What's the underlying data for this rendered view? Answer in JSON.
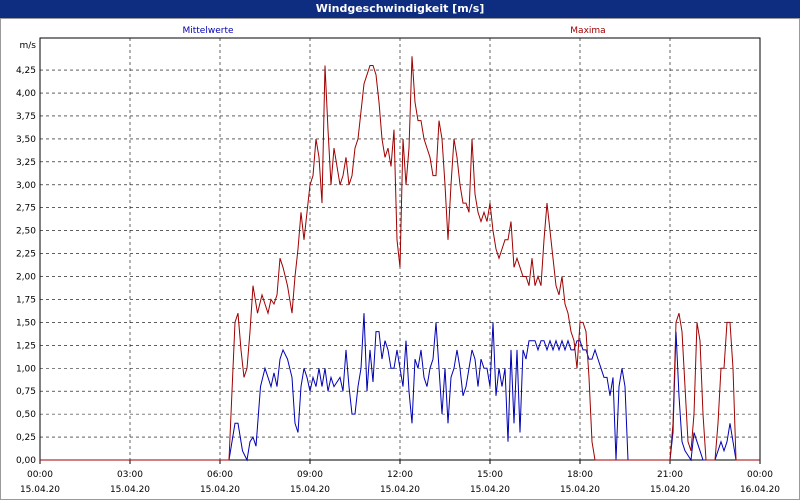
{
  "window": {
    "title": "Windgeschwindigkeit [m/s]"
  },
  "colors": {
    "titlebar": "#0f2d80",
    "mean": "#0000b4",
    "max": "#a00000",
    "grid": "#000000"
  },
  "chart_data": {
    "type": "line",
    "title": "Windgeschwindigkeit [m/s]",
    "ylabel": "m/s",
    "ylim": [
      0,
      4.6
    ],
    "xlim": [
      0,
      24
    ],
    "y_ticks": [
      "0,00",
      "0,25",
      "0,50",
      "0,75",
      "1,00",
      "1,25",
      "1,50",
      "1,75",
      "2,00",
      "2,25",
      "2,50",
      "2,75",
      "3,00",
      "3,25",
      "3,50",
      "3,75",
      "4,00",
      "4,25"
    ],
    "x_ticks": [
      {
        "time": "00:00",
        "date": "15.04.20"
      },
      {
        "time": "03:00",
        "date": "15.04.20"
      },
      {
        "time": "06:00",
        "date": "15.04.20"
      },
      {
        "time": "09:00",
        "date": "15.04.20"
      },
      {
        "time": "12:00",
        "date": "15.04.20"
      },
      {
        "time": "15:00",
        "date": "15.04.20"
      },
      {
        "time": "18:00",
        "date": "15.04.20"
      },
      {
        "time": "21:00",
        "date": "15.04.20"
      },
      {
        "time": "00:00",
        "date": "16.04.20"
      }
    ],
    "grid": true,
    "legend_position": "top",
    "series": [
      {
        "name": "Mittelwerte",
        "color": "#0000b4",
        "points": [
          [
            0,
            0
          ],
          [
            6.3,
            0
          ],
          [
            6.5,
            0.4
          ],
          [
            6.6,
            0.4
          ],
          [
            6.75,
            0.1
          ],
          [
            6.9,
            0
          ],
          [
            7.0,
            0.2
          ],
          [
            7.1,
            0.25
          ],
          [
            7.2,
            0.15
          ],
          [
            7.35,
            0.8
          ],
          [
            7.5,
            1.0
          ],
          [
            7.6,
            0.9
          ],
          [
            7.7,
            0.8
          ],
          [
            7.8,
            0.95
          ],
          [
            7.9,
            0.8
          ],
          [
            8.0,
            1.1
          ],
          [
            8.1,
            1.2
          ],
          [
            8.25,
            1.1
          ],
          [
            8.4,
            0.9
          ],
          [
            8.5,
            0.4
          ],
          [
            8.6,
            0.3
          ],
          [
            8.7,
            0.8
          ],
          [
            8.8,
            1.0
          ],
          [
            8.9,
            0.9
          ],
          [
            9.0,
            0.75
          ],
          [
            9.1,
            0.9
          ],
          [
            9.2,
            0.8
          ],
          [
            9.3,
            1.0
          ],
          [
            9.4,
            0.8
          ],
          [
            9.5,
            1.0
          ],
          [
            9.6,
            0.75
          ],
          [
            9.7,
            0.9
          ],
          [
            9.8,
            0.8
          ],
          [
            9.9,
            0.85
          ],
          [
            10.0,
            0.9
          ],
          [
            10.1,
            0.75
          ],
          [
            10.2,
            1.2
          ],
          [
            10.3,
            0.8
          ],
          [
            10.4,
            0.5
          ],
          [
            10.5,
            0.5
          ],
          [
            10.6,
            0.8
          ],
          [
            10.7,
            1.0
          ],
          [
            10.8,
            1.6
          ],
          [
            10.9,
            0.75
          ],
          [
            11.0,
            1.2
          ],
          [
            11.1,
            0.85
          ],
          [
            11.2,
            1.4
          ],
          [
            11.3,
            1.4
          ],
          [
            11.4,
            1.1
          ],
          [
            11.5,
            1.3
          ],
          [
            11.6,
            1.2
          ],
          [
            11.7,
            1.0
          ],
          [
            11.8,
            1.0
          ],
          [
            11.9,
            1.2
          ],
          [
            12.0,
            1.0
          ],
          [
            12.1,
            0.8
          ],
          [
            12.2,
            1.3
          ],
          [
            12.3,
            0.75
          ],
          [
            12.4,
            0.4
          ],
          [
            12.5,
            1.1
          ],
          [
            12.6,
            1.0
          ],
          [
            12.7,
            1.2
          ],
          [
            12.8,
            0.9
          ],
          [
            12.9,
            0.8
          ],
          [
            13.0,
            1.0
          ],
          [
            13.1,
            1.1
          ],
          [
            13.2,
            1.5
          ],
          [
            13.3,
            1.0
          ],
          [
            13.4,
            0.5
          ],
          [
            13.5,
            1.0
          ],
          [
            13.6,
            0.4
          ],
          [
            13.7,
            0.9
          ],
          [
            13.8,
            1.0
          ],
          [
            13.9,
            1.2
          ],
          [
            14.0,
            1.0
          ],
          [
            14.1,
            0.7
          ],
          [
            14.2,
            0.8
          ],
          [
            14.3,
            1.0
          ],
          [
            14.4,
            1.2
          ],
          [
            14.5,
            1.1
          ],
          [
            14.6,
            0.8
          ],
          [
            14.7,
            1.1
          ],
          [
            14.8,
            1.0
          ],
          [
            14.9,
            1.0
          ],
          [
            15.0,
            0.8
          ],
          [
            15.1,
            1.5
          ],
          [
            15.2,
            0.7
          ],
          [
            15.3,
            1.0
          ],
          [
            15.4,
            0.8
          ],
          [
            15.5,
            1.0
          ],
          [
            15.6,
            0.2
          ],
          [
            15.7,
            1.2
          ],
          [
            15.8,
            0.4
          ],
          [
            15.9,
            1.2
          ],
          [
            16.0,
            0.3
          ],
          [
            16.1,
            1.2
          ],
          [
            16.2,
            1.1
          ],
          [
            16.3,
            1.3
          ],
          [
            16.4,
            1.3
          ],
          [
            16.5,
            1.3
          ],
          [
            16.6,
            1.2
          ],
          [
            16.7,
            1.3
          ],
          [
            16.8,
            1.3
          ],
          [
            16.9,
            1.2
          ],
          [
            17.0,
            1.3
          ],
          [
            17.1,
            1.2
          ],
          [
            17.2,
            1.3
          ],
          [
            17.3,
            1.2
          ],
          [
            17.4,
            1.3
          ],
          [
            17.5,
            1.2
          ],
          [
            17.6,
            1.3
          ],
          [
            17.7,
            1.2
          ],
          [
            17.8,
            1.2
          ],
          [
            17.9,
            1.3
          ],
          [
            18.0,
            1.3
          ],
          [
            18.1,
            1.2
          ],
          [
            18.2,
            1.2
          ],
          [
            18.3,
            1.1
          ],
          [
            18.4,
            1.1
          ],
          [
            18.5,
            1.2
          ],
          [
            18.6,
            1.1
          ],
          [
            18.7,
            1.0
          ],
          [
            18.8,
            0.9
          ],
          [
            18.9,
            0.9
          ],
          [
            19.0,
            0.7
          ],
          [
            19.1,
            0.9
          ],
          [
            19.2,
            0.0
          ],
          [
            19.3,
            0.8
          ],
          [
            19.4,
            1.0
          ],
          [
            19.5,
            0.8
          ],
          [
            19.6,
            0
          ],
          [
            21.0,
            0
          ],
          [
            21.1,
            0.3
          ],
          [
            21.2,
            1.4
          ],
          [
            21.3,
            0.7
          ],
          [
            21.4,
            0.2
          ],
          [
            21.5,
            0.1
          ],
          [
            21.6,
            0.05
          ],
          [
            21.7,
            0
          ],
          [
            21.8,
            0.3
          ],
          [
            21.9,
            0.2
          ],
          [
            22.0,
            0.1
          ],
          [
            22.1,
            0.0
          ],
          [
            22.2,
            0
          ],
          [
            22.5,
            0
          ],
          [
            22.6,
            0.1
          ],
          [
            22.7,
            0.2
          ],
          [
            22.8,
            0.1
          ],
          [
            22.9,
            0.2
          ],
          [
            23.0,
            0.4
          ],
          [
            23.1,
            0.2
          ],
          [
            23.2,
            0
          ],
          [
            24,
            0
          ]
        ]
      },
      {
        "name": "Maxima",
        "color": "#a00000",
        "points": [
          [
            0,
            0
          ],
          [
            6.3,
            0
          ],
          [
            6.5,
            1.5
          ],
          [
            6.6,
            1.6
          ],
          [
            6.7,
            1.2
          ],
          [
            6.8,
            0.9
          ],
          [
            6.9,
            1.0
          ],
          [
            7.0,
            1.4
          ],
          [
            7.1,
            1.9
          ],
          [
            7.25,
            1.6
          ],
          [
            7.4,
            1.8
          ],
          [
            7.5,
            1.7
          ],
          [
            7.6,
            1.6
          ],
          [
            7.7,
            1.75
          ],
          [
            7.8,
            1.7
          ],
          [
            7.9,
            1.8
          ],
          [
            8.0,
            2.2
          ],
          [
            8.1,
            2.1
          ],
          [
            8.25,
            1.9
          ],
          [
            8.4,
            1.6
          ],
          [
            8.5,
            2.0
          ],
          [
            8.6,
            2.3
          ],
          [
            8.7,
            2.7
          ],
          [
            8.8,
            2.4
          ],
          [
            8.9,
            2.7
          ],
          [
            9.0,
            3.0
          ],
          [
            9.1,
            3.1
          ],
          [
            9.2,
            3.5
          ],
          [
            9.3,
            3.3
          ],
          [
            9.4,
            2.8
          ],
          [
            9.5,
            4.3
          ],
          [
            9.6,
            3.6
          ],
          [
            9.7,
            3.0
          ],
          [
            9.8,
            3.4
          ],
          [
            9.9,
            3.2
          ],
          [
            10.0,
            3.0
          ],
          [
            10.1,
            3.1
          ],
          [
            10.2,
            3.3
          ],
          [
            10.3,
            3.0
          ],
          [
            10.4,
            3.1
          ],
          [
            10.5,
            3.4
          ],
          [
            10.6,
            3.5
          ],
          [
            10.7,
            3.8
          ],
          [
            10.8,
            4.1
          ],
          [
            10.9,
            4.2
          ],
          [
            11.0,
            4.3
          ],
          [
            11.1,
            4.3
          ],
          [
            11.2,
            4.2
          ],
          [
            11.3,
            3.9
          ],
          [
            11.4,
            3.5
          ],
          [
            11.5,
            3.3
          ],
          [
            11.6,
            3.4
          ],
          [
            11.7,
            3.2
          ],
          [
            11.8,
            3.6
          ],
          [
            11.9,
            2.4
          ],
          [
            12.0,
            2.1
          ],
          [
            12.1,
            3.5
          ],
          [
            12.2,
            3.0
          ],
          [
            12.3,
            3.4
          ],
          [
            12.4,
            4.4
          ],
          [
            12.5,
            3.9
          ],
          [
            12.6,
            3.7
          ],
          [
            12.7,
            3.7
          ],
          [
            12.8,
            3.5
          ],
          [
            12.9,
            3.4
          ],
          [
            13.0,
            3.3
          ],
          [
            13.1,
            3.1
          ],
          [
            13.2,
            3.1
          ],
          [
            13.3,
            3.7
          ],
          [
            13.4,
            3.5
          ],
          [
            13.5,
            3.0
          ],
          [
            13.6,
            2.4
          ],
          [
            13.7,
            3.0
          ],
          [
            13.8,
            3.5
          ],
          [
            13.9,
            3.3
          ],
          [
            14.0,
            3.0
          ],
          [
            14.1,
            2.8
          ],
          [
            14.2,
            2.8
          ],
          [
            14.3,
            2.7
          ],
          [
            14.4,
            3.5
          ],
          [
            14.5,
            2.9
          ],
          [
            14.6,
            2.7
          ],
          [
            14.7,
            2.6
          ],
          [
            14.8,
            2.7
          ],
          [
            14.9,
            2.6
          ],
          [
            15.0,
            2.8
          ],
          [
            15.1,
            2.5
          ],
          [
            15.2,
            2.3
          ],
          [
            15.3,
            2.2
          ],
          [
            15.4,
            2.3
          ],
          [
            15.5,
            2.4
          ],
          [
            15.6,
            2.4
          ],
          [
            15.7,
            2.6
          ],
          [
            15.8,
            2.1
          ],
          [
            15.9,
            2.2
          ],
          [
            16.0,
            2.1
          ],
          [
            16.1,
            2.0
          ],
          [
            16.2,
            2.0
          ],
          [
            16.3,
            1.9
          ],
          [
            16.4,
            2.2
          ],
          [
            16.5,
            1.9
          ],
          [
            16.6,
            2.0
          ],
          [
            16.7,
            1.9
          ],
          [
            16.8,
            2.4
          ],
          [
            16.9,
            2.8
          ],
          [
            17.0,
            2.5
          ],
          [
            17.1,
            2.2
          ],
          [
            17.2,
            1.9
          ],
          [
            17.3,
            1.8
          ],
          [
            17.4,
            2.0
          ],
          [
            17.5,
            1.7
          ],
          [
            17.6,
            1.6
          ],
          [
            17.7,
            1.4
          ],
          [
            17.8,
            1.3
          ],
          [
            17.9,
            1.0
          ],
          [
            18.0,
            1.5
          ],
          [
            18.1,
            1.5
          ],
          [
            18.2,
            1.4
          ],
          [
            18.3,
            0.9
          ],
          [
            18.4,
            0.2
          ],
          [
            18.5,
            0
          ],
          [
            19.6,
            0
          ],
          [
            21.0,
            0
          ],
          [
            21.1,
            0.4
          ],
          [
            21.2,
            1.5
          ],
          [
            21.3,
            1.6
          ],
          [
            21.4,
            1.4
          ],
          [
            21.5,
            0.8
          ],
          [
            21.6,
            0.2
          ],
          [
            21.7,
            0.1
          ],
          [
            21.8,
            0.5
          ],
          [
            21.9,
            1.5
          ],
          [
            22.0,
            1.3
          ],
          [
            22.1,
            0.5
          ],
          [
            22.2,
            0
          ],
          [
            22.5,
            0
          ],
          [
            22.6,
            0.4
          ],
          [
            22.7,
            1.0
          ],
          [
            22.8,
            1.0
          ],
          [
            22.9,
            1.5
          ],
          [
            23.0,
            1.5
          ],
          [
            23.1,
            1.0
          ],
          [
            23.2,
            0
          ],
          [
            24,
            0
          ]
        ]
      }
    ]
  }
}
